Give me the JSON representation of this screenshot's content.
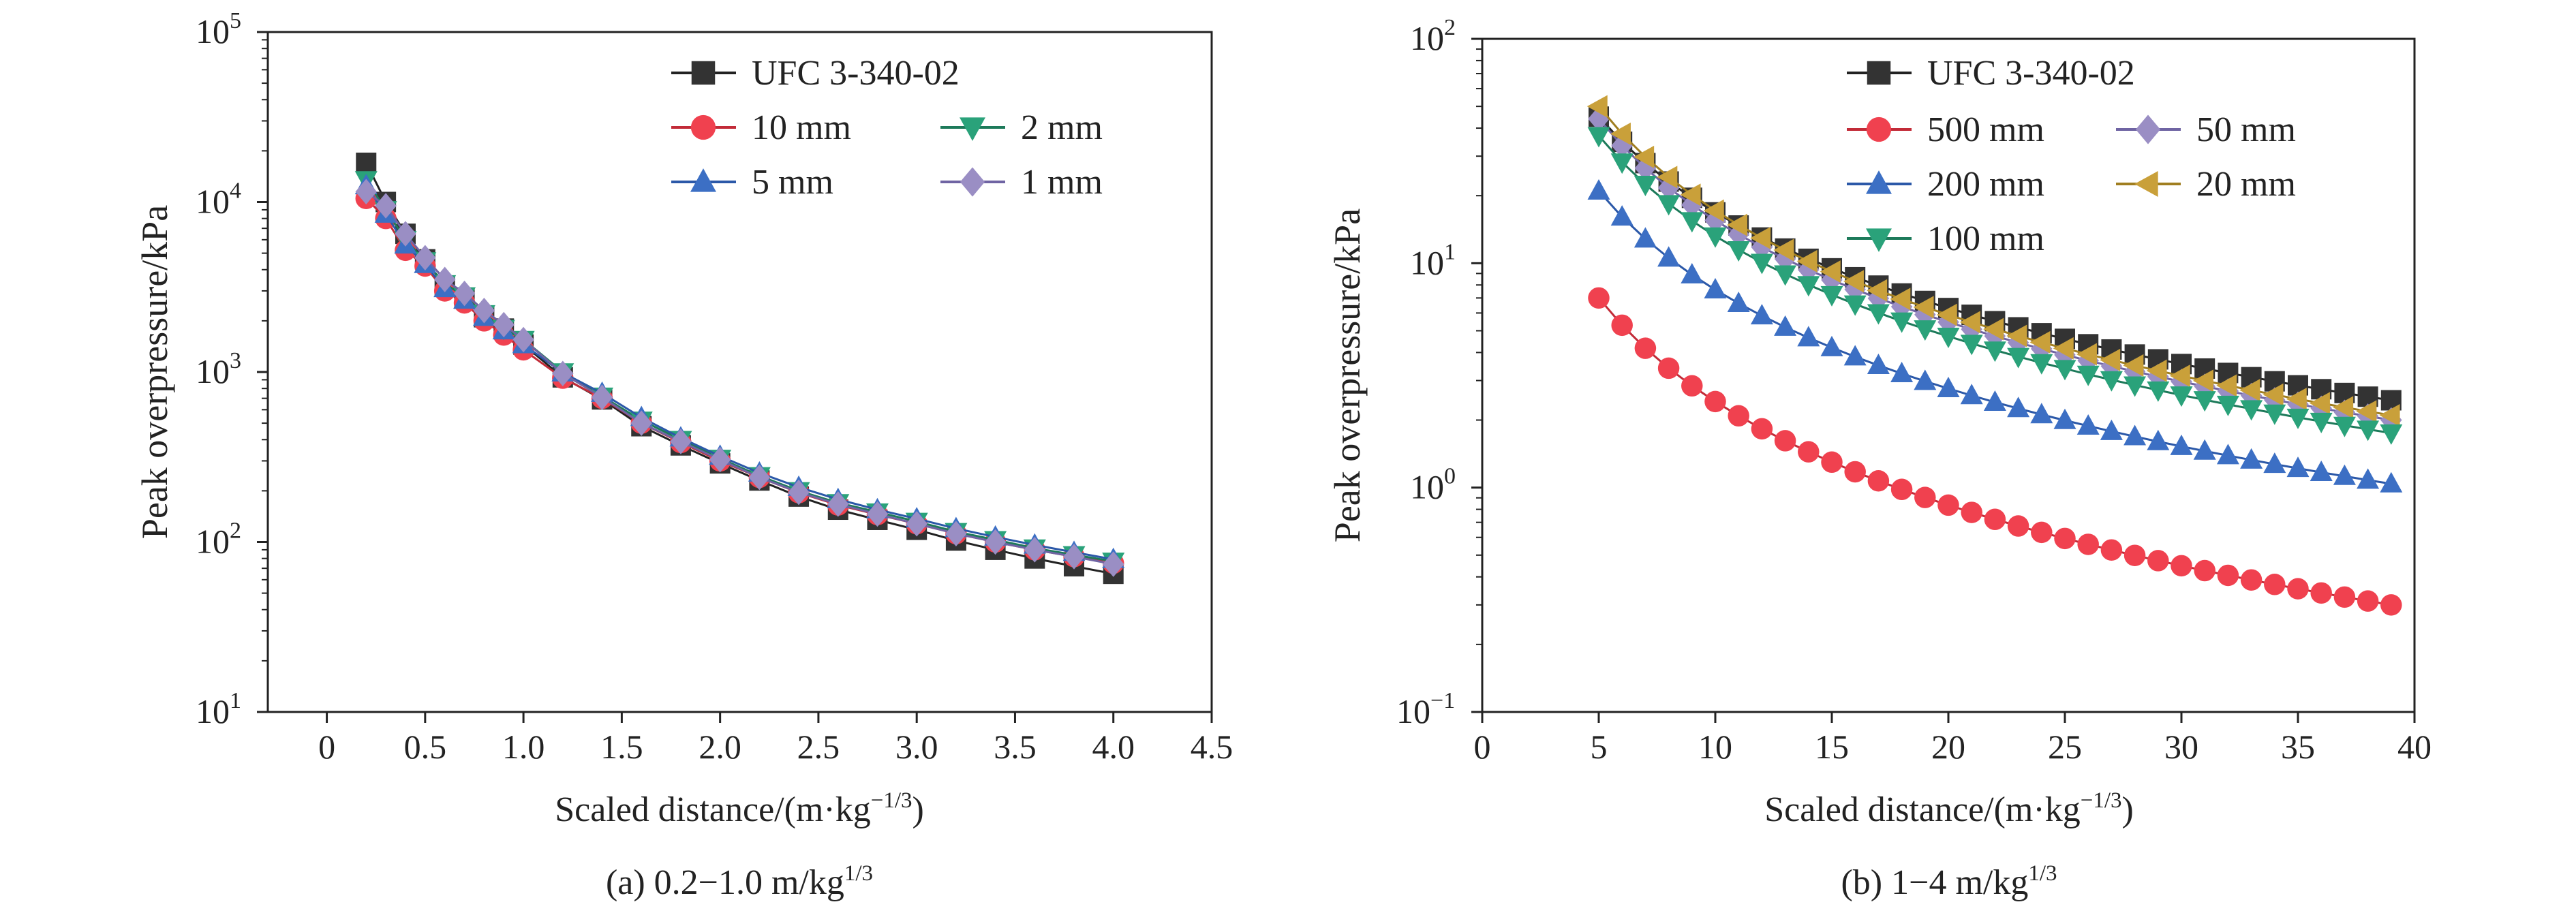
{
  "chart_data": [
    {
      "type": "line",
      "yscale": "log",
      "xlabel": "Scaled distance/(m·kg",
      "xlabel_sup": "−1/3",
      "xlabel_close": ")",
      "ylabel": "Peak overpressure/kPa",
      "xlim": [
        -0.3,
        4.5
      ],
      "xticks": [
        "0",
        "0.5",
        "1.0",
        "1.5",
        "2.0",
        "2.5",
        "3.0",
        "3.5",
        "4.0",
        "4.5"
      ],
      "xtick_values": [
        0,
        0.5,
        1.0,
        1.5,
        2.0,
        2.5,
        3.0,
        3.5,
        4.0,
        4.5
      ],
      "ylim": [
        10,
        100000
      ],
      "ytick_exponents": [
        "1",
        "2",
        "3",
        "4",
        "5"
      ],
      "ytick_base": "10",
      "caption": "(a) 0.2−1.0 m/kg",
      "caption_sup": "1/3",
      "legend_position": "top-right",
      "series": [
        {
          "name": "UFC 3-340-02",
          "marker": "square",
          "color": "#333333",
          "line": "#222222",
          "x": [
            0.2,
            0.3,
            0.4,
            0.5,
            0.6,
            0.7,
            0.8,
            0.9,
            1.0,
            1.2,
            1.4,
            1.6,
            1.8,
            2.0,
            2.2,
            2.4,
            2.6,
            2.8,
            3.0,
            3.2,
            3.4,
            3.6,
            3.8,
            4.0
          ],
          "y": [
            17000,
            10000,
            6500,
            4600,
            3200,
            2700,
            2100,
            1800,
            1450,
            930,
            690,
            480,
            370,
            290,
            230,
            185,
            155,
            135,
            118,
            102,
            90,
            80,
            72,
            65
          ]
        },
        {
          "name": "10 mm",
          "marker": "circle",
          "color": "#f0414f",
          "line": "#c22b38",
          "x": [
            0.2,
            0.3,
            0.4,
            0.5,
            0.6,
            0.7,
            0.8,
            0.9,
            1.0,
            1.2,
            1.4,
            1.6,
            1.8,
            2.0,
            2.2,
            2.4,
            2.6,
            2.8,
            3.0,
            3.2,
            3.4,
            3.6,
            3.8,
            4.0
          ],
          "y": [
            10500,
            8000,
            5200,
            4200,
            3000,
            2550,
            2000,
            1650,
            1350,
            920,
            700,
            500,
            385,
            300,
            240,
            195,
            165,
            145,
            128,
            112,
            100,
            90,
            82,
            75
          ]
        },
        {
          "name": "2 mm",
          "marker": "triangle-down",
          "color": "#2aa27a",
          "line": "#1d7a5a",
          "x": [
            0.2,
            0.3,
            0.4,
            0.5,
            0.6,
            0.7,
            0.8,
            0.9,
            1.0,
            1.2,
            1.4,
            1.6,
            1.8,
            2.0,
            2.2,
            2.4,
            2.6,
            2.8,
            3.0,
            3.2,
            3.4,
            3.6,
            3.8,
            4.0
          ],
          "y": [
            13500,
            9000,
            6000,
            4500,
            3300,
            2800,
            2200,
            1800,
            1550,
            1000,
            720,
            520,
            400,
            310,
            245,
            200,
            170,
            150,
            132,
            115,
            103,
            92,
            84,
            77
          ]
        },
        {
          "name": "5 mm",
          "marker": "triangle-up",
          "color": "#3c6fc4",
          "line": "#2b58a8",
          "x": [
            0.2,
            0.3,
            0.4,
            0.5,
            0.6,
            0.7,
            0.8,
            0.9,
            1.0,
            1.2,
            1.4,
            1.6,
            1.8,
            2.0,
            2.2,
            2.4,
            2.6,
            2.8,
            3.0,
            3.2,
            3.4,
            3.6,
            3.8,
            4.0
          ],
          "y": [
            12500,
            8500,
            5600,
            4300,
            3100,
            2650,
            2100,
            1750,
            1450,
            990,
            750,
            540,
            410,
            320,
            255,
            210,
            178,
            155,
            137,
            120,
            107,
            96,
            87,
            79
          ]
        },
        {
          "name": "1 mm",
          "marker": "diamond",
          "color": "#9a8ec4",
          "line": "#6f64a3",
          "x": [
            0.2,
            0.3,
            0.4,
            0.5,
            0.6,
            0.7,
            0.8,
            0.9,
            1.0,
            1.2,
            1.4,
            1.6,
            1.8,
            2.0,
            2.2,
            2.4,
            2.6,
            2.8,
            3.0,
            3.2,
            3.4,
            3.6,
            3.8,
            4.0
          ],
          "y": [
            11500,
            9500,
            6500,
            4700,
            3500,
            2900,
            2300,
            1900,
            1550,
            980,
            710,
            500,
            390,
            305,
            240,
            196,
            167,
            146,
            128,
            112,
            100,
            90,
            82,
            74
          ]
        }
      ]
    },
    {
      "type": "line",
      "yscale": "log",
      "xlabel": "Scaled distance/(m·kg",
      "xlabel_sup": "−1/3",
      "xlabel_close": ")",
      "ylabel": "Peak overpressure/kPa",
      "xlim": [
        0,
        40
      ],
      "xticks": [
        "0",
        "5",
        "10",
        "15",
        "20",
        "25",
        "30",
        "35",
        "40"
      ],
      "xtick_values": [
        0,
        5,
        10,
        15,
        20,
        25,
        30,
        35,
        40
      ],
      "ylim": [
        0.1,
        100
      ],
      "ytick_exponents": [
        "−1",
        "0",
        "1",
        "2"
      ],
      "ytick_base": "10",
      "caption": "(b) 1−4 m/kg",
      "caption_sup": "1/3",
      "legend_position": "top-right",
      "series": [
        {
          "name": "UFC 3-340-02",
          "marker": "square",
          "color": "#333333",
          "line": "#222222",
          "y_at_5": 45.0,
          "y_at_39": 2.45
        },
        {
          "name": "500 mm",
          "marker": "circle",
          "color": "#f0414f",
          "line": "#c22b38",
          "y_at_5": 7.0,
          "y_at_39": 0.3
        },
        {
          "name": "50 mm",
          "marker": "diamond",
          "color": "#9a8ec4",
          "line": "#6f64a3",
          "y_at_5": 44.0,
          "y_at_39": 2.0
        },
        {
          "name": "200 mm",
          "marker": "triangle-up",
          "color": "#3c6fc4",
          "line": "#2b58a8",
          "y_at_5": 21.0,
          "y_at_39": 1.04
        },
        {
          "name": "20 mm",
          "marker": "triangle-left",
          "color": "#c9a03a",
          "line": "#a07e20",
          "y_at_5": 50.0,
          "y_at_39": 2.1
        },
        {
          "name": "100 mm",
          "marker": "triangle-down",
          "color": "#2aa27a",
          "line": "#1d7a5a",
          "y_at_5": 37.0,
          "y_at_39": 1.75
        }
      ],
      "x_start": 5,
      "x_end": 39,
      "x_step": 1
    }
  ]
}
